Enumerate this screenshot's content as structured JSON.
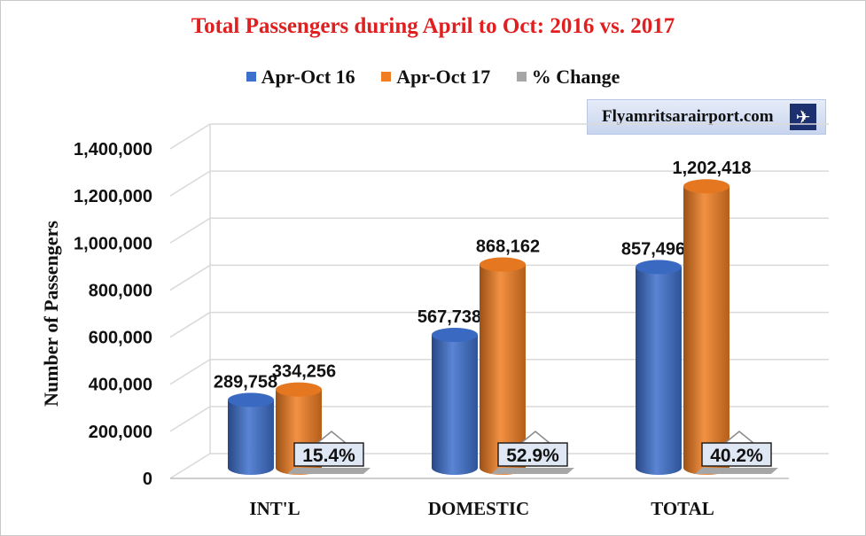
{
  "chart_data": {
    "type": "bar",
    "title": "Total Passengers during April to Oct: 2016 vs. 2017",
    "ylabel": "Number of Passengers",
    "xlabel": "",
    "ylim": [
      0,
      1400000
    ],
    "yticks": [
      "0",
      "200,000",
      "400,000",
      "600,000",
      "800,000",
      "1,000,000",
      "1,200,000",
      "1,400,000"
    ],
    "categories": [
      "INT'L",
      "DOMESTIC",
      "TOTAL"
    ],
    "series": [
      {
        "name": "Apr-Oct 16",
        "color": "#3d6fcc",
        "values": [
          289758,
          567738,
          857496
        ],
        "labels": [
          "289,758",
          "567,738",
          "857,496"
        ]
      },
      {
        "name": "Apr-Oct 17",
        "color": "#f07d22",
        "values": [
          334256,
          868162,
          1202418
        ],
        "labels": [
          "334,256",
          "868,162",
          "1,202,418"
        ]
      }
    ],
    "change_series": {
      "name": "% Change",
      "color": "#a6a6a6",
      "values": [
        15.4,
        52.9,
        40.2
      ],
      "labels": [
        "15.4%",
        "52.9%",
        "40.2%"
      ]
    },
    "grid": true,
    "legend_position": "top"
  },
  "watermark": {
    "text": "Flyamritsarairport.com",
    "icon": "plane-icon"
  },
  "colors": {
    "title": "#e02020",
    "gridline": "#d9d9d9"
  }
}
